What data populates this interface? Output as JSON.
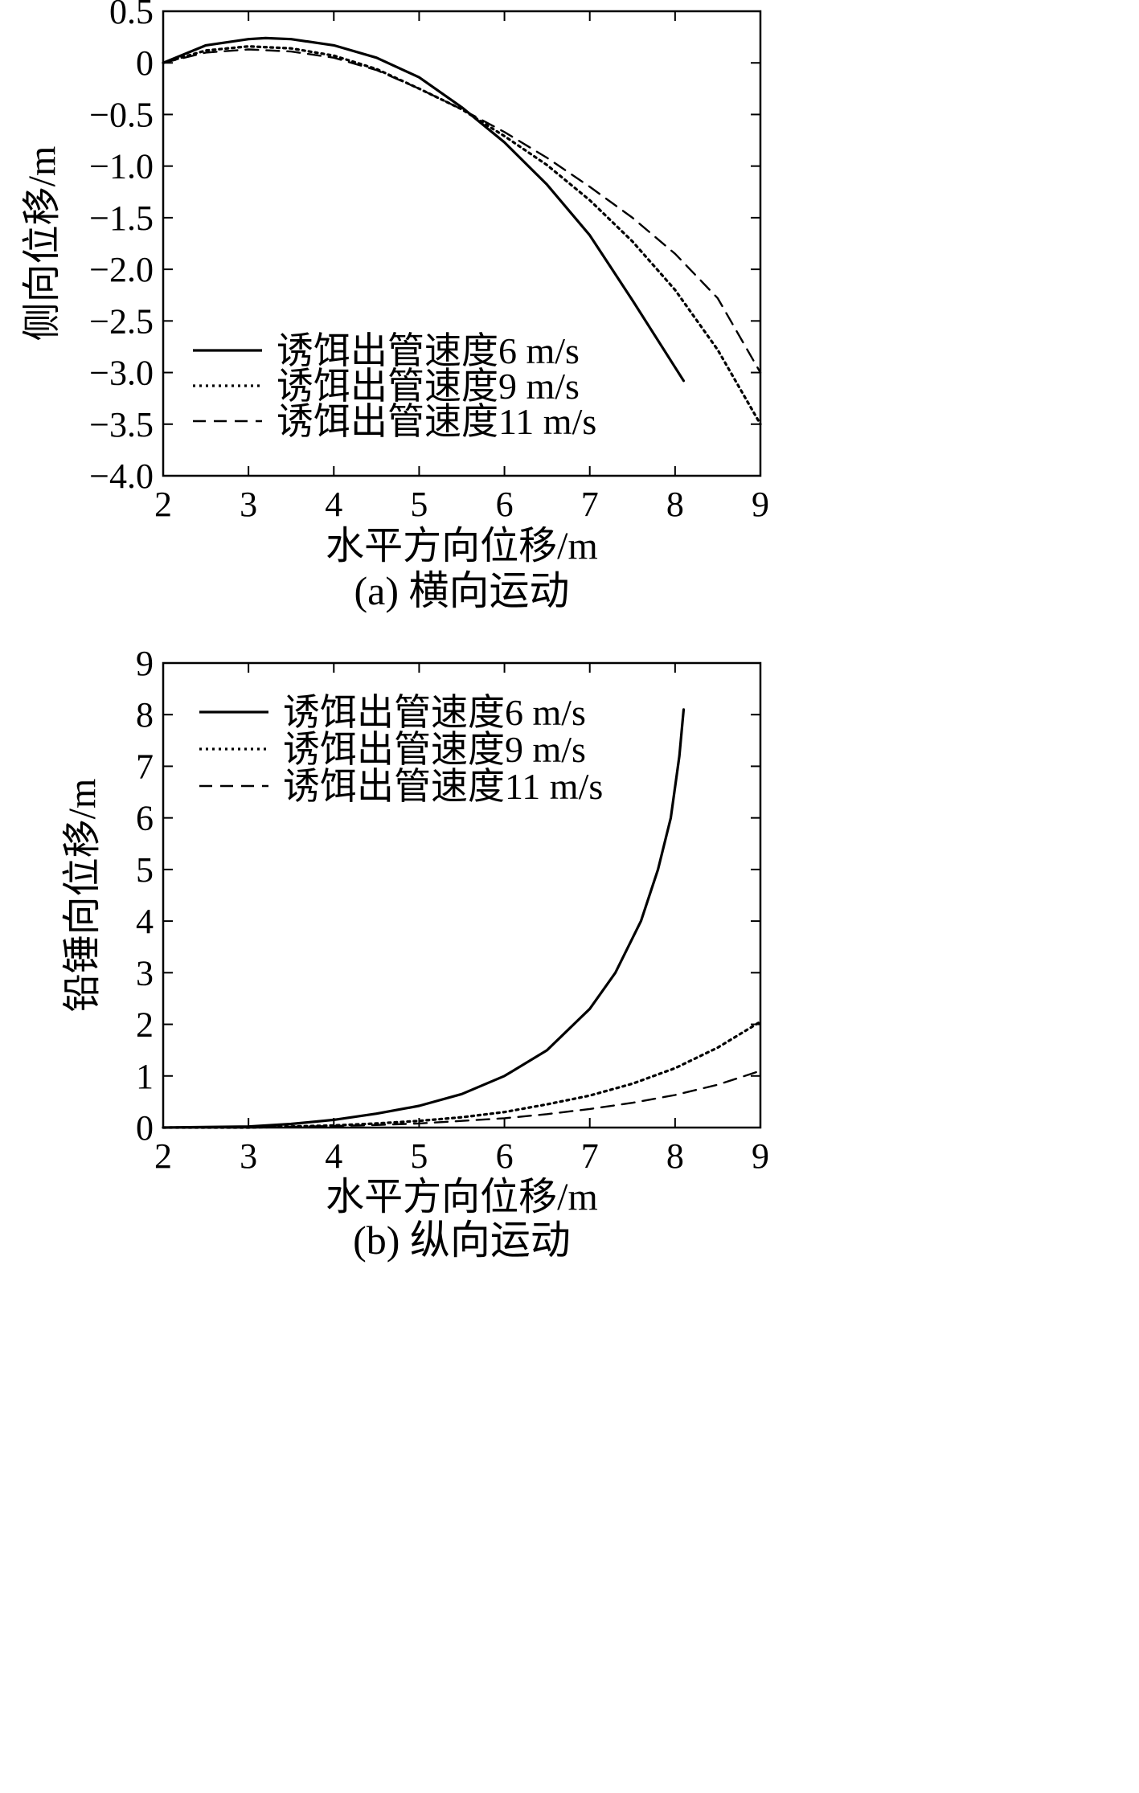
{
  "chart_data": [
    {
      "type": "line",
      "caption": "(a) 横向运动",
      "xlabel": "水平方向位移/m",
      "ylabel": "侧向位移/m",
      "xlim": [
        2,
        9
      ],
      "ylim": [
        -4.0,
        0.5
      ],
      "xticks": [
        "2",
        "3",
        "4",
        "5",
        "6",
        "7",
        "8",
        "9"
      ],
      "yticks": [
        "0.5",
        "0",
        "−0.5",
        "−1.0",
        "−1.5",
        "−2.0",
        "−2.5",
        "−3.0",
        "−3.5",
        "−4.0"
      ],
      "legend_position": "lower-left",
      "series": [
        {
          "name": "诱饵出管速度6 m/s",
          "style": "solid",
          "x": [
            2.0,
            2.5,
            3.0,
            3.2,
            3.5,
            4.0,
            4.5,
            5.0,
            5.5,
            6.0,
            6.5,
            7.0,
            7.5,
            8.1
          ],
          "y": [
            0.0,
            0.17,
            0.23,
            0.24,
            0.23,
            0.17,
            0.05,
            -0.14,
            -0.43,
            -0.77,
            -1.18,
            -1.67,
            -2.3,
            -3.08
          ]
        },
        {
          "name": "诱饵出管速度9 m/s",
          "style": "dotted",
          "x": [
            2.0,
            2.5,
            3.0,
            3.5,
            4.0,
            4.5,
            5.0,
            5.5,
            6.0,
            6.5,
            7.0,
            7.5,
            8.0,
            8.5,
            9.0
          ],
          "y": [
            0.0,
            0.12,
            0.16,
            0.14,
            0.07,
            -0.06,
            -0.25,
            -0.45,
            -0.71,
            -0.99,
            -1.33,
            -1.73,
            -2.2,
            -2.78,
            -3.5
          ]
        },
        {
          "name": "诱饵出管速度11 m/s",
          "style": "dashed",
          "x": [
            2.0,
            2.5,
            3.0,
            3.5,
            4.0,
            4.5,
            5.0,
            5.5,
            6.0,
            6.5,
            7.0,
            7.5,
            8.0,
            8.5,
            9.0
          ],
          "y": [
            0.0,
            0.1,
            0.13,
            0.11,
            0.05,
            -0.07,
            -0.25,
            -0.45,
            -0.67,
            -0.92,
            -1.2,
            -1.5,
            -1.85,
            -2.28,
            -3.0
          ]
        }
      ]
    },
    {
      "type": "line",
      "caption": "(b) 纵向运动",
      "xlabel": "水平方向位移/m",
      "ylabel": "铅锤向位移/m",
      "xlim": [
        2,
        9
      ],
      "ylim": [
        0,
        9
      ],
      "xticks": [
        "2",
        "3",
        "4",
        "5",
        "6",
        "7",
        "8",
        "9"
      ],
      "yticks": [
        "9",
        "8",
        "7",
        "6",
        "5",
        "4",
        "3",
        "2",
        "1",
        "0"
      ],
      "legend_position": "upper-left",
      "series": [
        {
          "name": "诱饵出管速度6 m/s",
          "style": "solid",
          "x": [
            2.0,
            3.0,
            3.5,
            4.0,
            4.5,
            5.0,
            5.5,
            6.0,
            6.5,
            7.0,
            7.3,
            7.6,
            7.8,
            7.95,
            8.05,
            8.1
          ],
          "y": [
            0.0,
            0.02,
            0.07,
            0.15,
            0.27,
            0.42,
            0.65,
            1.0,
            1.5,
            2.3,
            3.0,
            4.0,
            5.0,
            6.0,
            7.2,
            8.1
          ]
        },
        {
          "name": "诱饵出管速度9 m/s",
          "style": "dotted",
          "x": [
            2.0,
            3.0,
            4.0,
            4.5,
            5.0,
            5.5,
            6.0,
            6.5,
            7.0,
            7.5,
            8.0,
            8.5,
            9.0
          ],
          "y": [
            0.0,
            0.0,
            0.04,
            0.08,
            0.13,
            0.2,
            0.3,
            0.45,
            0.62,
            0.85,
            1.15,
            1.55,
            2.05
          ]
        },
        {
          "name": "诱饵出管速度11 m/s",
          "style": "dashed",
          "x": [
            2.0,
            3.0,
            4.0,
            4.5,
            5.0,
            5.5,
            6.0,
            6.5,
            7.0,
            7.5,
            8.0,
            8.5,
            9.0
          ],
          "y": [
            0.0,
            0.0,
            0.03,
            0.05,
            0.08,
            0.13,
            0.18,
            0.26,
            0.36,
            0.48,
            0.63,
            0.83,
            1.1
          ]
        }
      ]
    }
  ]
}
